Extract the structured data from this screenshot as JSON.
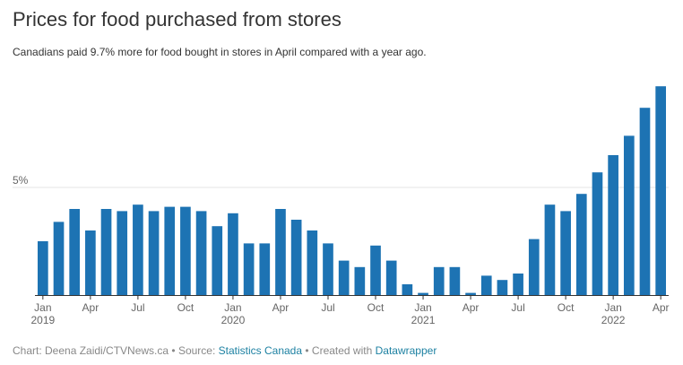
{
  "header": {
    "title": "Prices for food purchased from stores",
    "subtitle": "Canadians paid 9.7% more for food bought in stores in April compared with a year ago."
  },
  "footer": {
    "chart_prefix": "Chart: ",
    "chart_author": "Deena Zaidi/CTVNews.ca",
    "source_prefix": " • Source: ",
    "source_name": "Statistics Canada",
    "created_prefix": " • Created with ",
    "created_tool": "Datawrapper"
  },
  "colors": {
    "bar": "#1d73b3",
    "grid": "#e6e6e6",
    "baseline": "#333333",
    "link": "#1d81a2"
  },
  "chart_data": {
    "type": "bar",
    "title": "Prices for food purchased from stores",
    "xlabel": "",
    "ylabel": "",
    "ylim": [
      0,
      10
    ],
    "y_ticks": [
      {
        "value": 5,
        "label": "5%"
      }
    ],
    "grid": true,
    "categories": [
      "2019-01",
      "2019-02",
      "2019-03",
      "2019-04",
      "2019-05",
      "2019-06",
      "2019-07",
      "2019-08",
      "2019-09",
      "2019-10",
      "2019-11",
      "2019-12",
      "2020-01",
      "2020-02",
      "2020-03",
      "2020-04",
      "2020-05",
      "2020-06",
      "2020-07",
      "2020-08",
      "2020-09",
      "2020-10",
      "2020-11",
      "2020-12",
      "2021-01",
      "2021-02",
      "2021-03",
      "2021-04",
      "2021-05",
      "2021-06",
      "2021-07",
      "2021-08",
      "2021-09",
      "2021-10",
      "2021-11",
      "2021-12",
      "2022-01",
      "2022-02",
      "2022-03",
      "2022-04"
    ],
    "values": [
      2.5,
      3.4,
      4.0,
      3.0,
      4.0,
      3.9,
      4.2,
      3.9,
      4.1,
      4.1,
      3.9,
      3.2,
      3.8,
      2.4,
      2.4,
      4.0,
      3.5,
      3.0,
      2.4,
      1.6,
      1.3,
      2.3,
      1.6,
      0.5,
      0.1,
      1.3,
      1.3,
      0.1,
      0.9,
      0.7,
      1.0,
      2.6,
      4.2,
      3.9,
      4.7,
      5.7,
      6.5,
      7.4,
      8.7,
      9.7
    ],
    "x_tick_labels": [
      {
        "index": 0,
        "month": "Jan",
        "year": "2019"
      },
      {
        "index": 3,
        "month": "Apr",
        "year": ""
      },
      {
        "index": 6,
        "month": "Jul",
        "year": ""
      },
      {
        "index": 9,
        "month": "Oct",
        "year": ""
      },
      {
        "index": 12,
        "month": "Jan",
        "year": "2020"
      },
      {
        "index": 15,
        "month": "Apr",
        "year": ""
      },
      {
        "index": 18,
        "month": "Jul",
        "year": ""
      },
      {
        "index": 21,
        "month": "Oct",
        "year": ""
      },
      {
        "index": 24,
        "month": "Jan",
        "year": "2021"
      },
      {
        "index": 27,
        "month": "Apr",
        "year": ""
      },
      {
        "index": 30,
        "month": "Jul",
        "year": ""
      },
      {
        "index": 33,
        "month": "Oct",
        "year": ""
      },
      {
        "index": 36,
        "month": "Jan",
        "year": "2022"
      },
      {
        "index": 39,
        "month": "Apr",
        "year": ""
      }
    ]
  }
}
